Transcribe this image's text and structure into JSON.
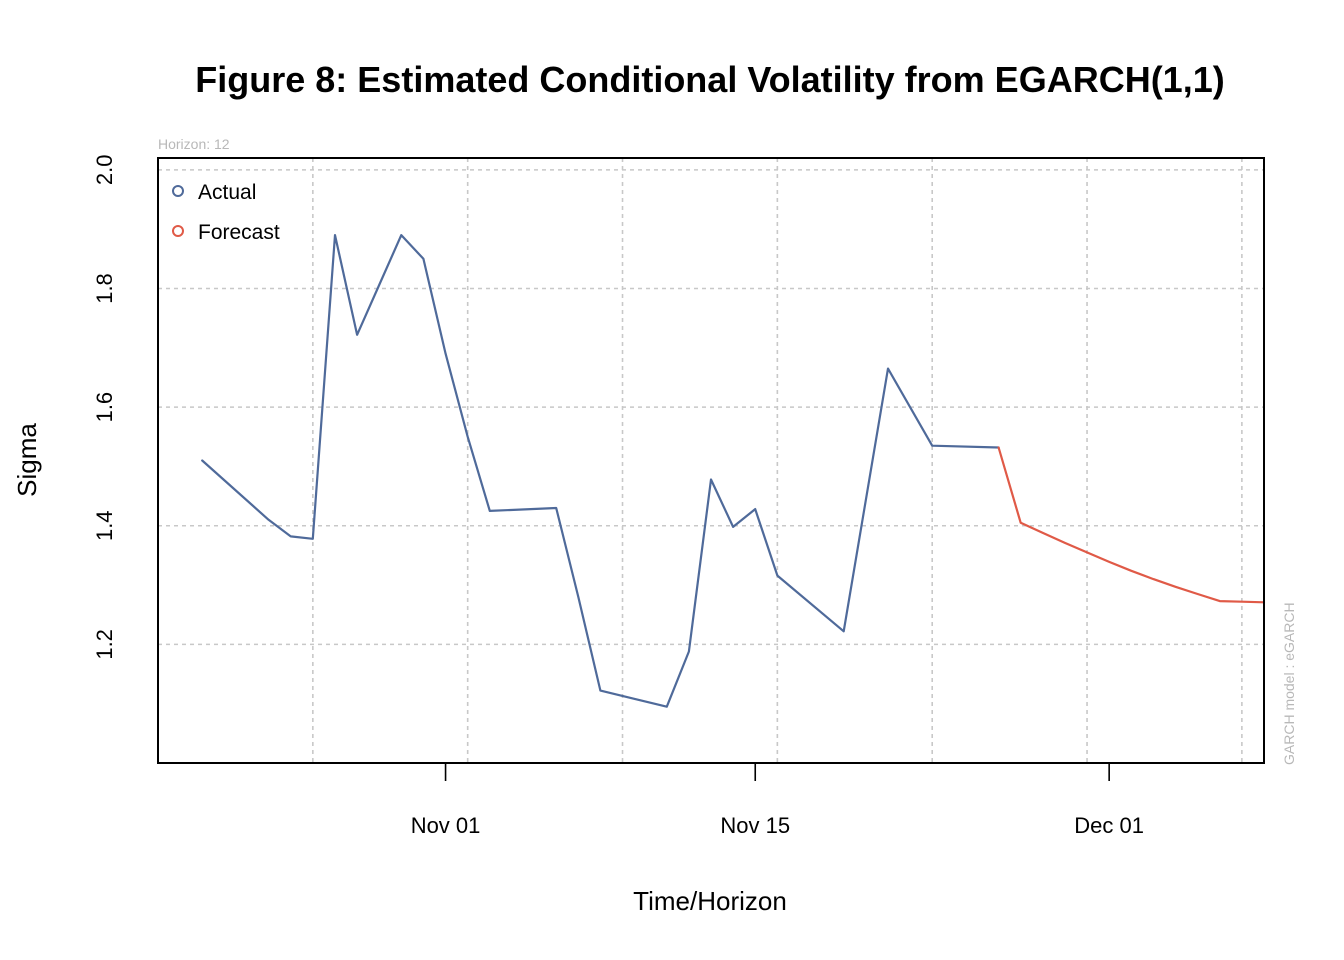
{
  "chart_data": {
    "type": "line",
    "title": "Figure 8: Estimated Conditional Volatility from EGARCH(1,1)",
    "xlabel": "Time/Horizon",
    "ylabel": "Sigma",
    "subtitle": "Horizon: 12",
    "side_note": "GARCH model :  eGARCH",
    "ylim": [
      1.0,
      2.02
    ],
    "xlim": [
      "2025-10-19",
      "2025-12-08"
    ],
    "yticks": [
      1.2,
      1.4,
      1.6,
      1.8,
      2.0
    ],
    "ytick_labels": [
      "1.2",
      "1.4",
      "1.6",
      "1.8",
      "2.0"
    ],
    "xticks": [
      "2025-11-01",
      "2025-11-15",
      "2025-12-01"
    ],
    "xtick_labels": [
      "Nov 01",
      "Nov 15",
      "Dec 01"
    ],
    "grid": true,
    "legend": {
      "position": "top-left",
      "entries": [
        {
          "label": "Actual",
          "color": "#4f6a9a"
        },
        {
          "label": "Forecast",
          "color": "#e05a47"
        }
      ]
    },
    "series": [
      {
        "name": "Actual",
        "color": "#4f6a9a",
        "x": [
          "2025-10-21",
          "2025-10-24",
          "2025-10-25",
          "2025-10-26",
          "2025-10-27",
          "2025-10-28",
          "2025-10-30",
          "2025-10-31",
          "2025-11-01",
          "2025-11-02",
          "2025-11-03",
          "2025-11-06",
          "2025-11-07",
          "2025-11-08",
          "2025-11-11",
          "2025-11-12",
          "2025-11-13",
          "2025-11-14",
          "2025-11-15",
          "2025-11-16",
          "2025-11-19",
          "2025-11-21",
          "2025-11-23",
          "2025-11-26"
        ],
        "y": [
          1.51,
          1.41,
          1.382,
          1.378,
          1.89,
          1.722,
          1.89,
          1.85,
          1.69,
          1.55,
          1.425,
          1.43,
          1.28,
          1.122,
          1.095,
          1.188,
          1.478,
          1.398,
          1.428,
          1.316,
          1.222,
          1.665,
          1.535,
          1.532
        ]
      },
      {
        "name": "Forecast",
        "color": "#e05a47",
        "x": [
          "2025-11-26",
          "2025-11-27",
          "2025-11-28",
          "2025-11-29",
          "2025-11-30",
          "2025-12-01",
          "2025-12-02",
          "2025-12-03",
          "2025-12-04",
          "2025-12-05",
          "2025-12-06",
          "2025-12-07",
          "2025-12-08"
        ],
        "y": [
          1.532,
          1.405,
          1.388,
          1.371,
          1.355,
          1.339,
          1.324,
          1.31,
          1.297,
          1.285,
          1.273,
          1.272,
          1.271
        ]
      }
    ]
  }
}
